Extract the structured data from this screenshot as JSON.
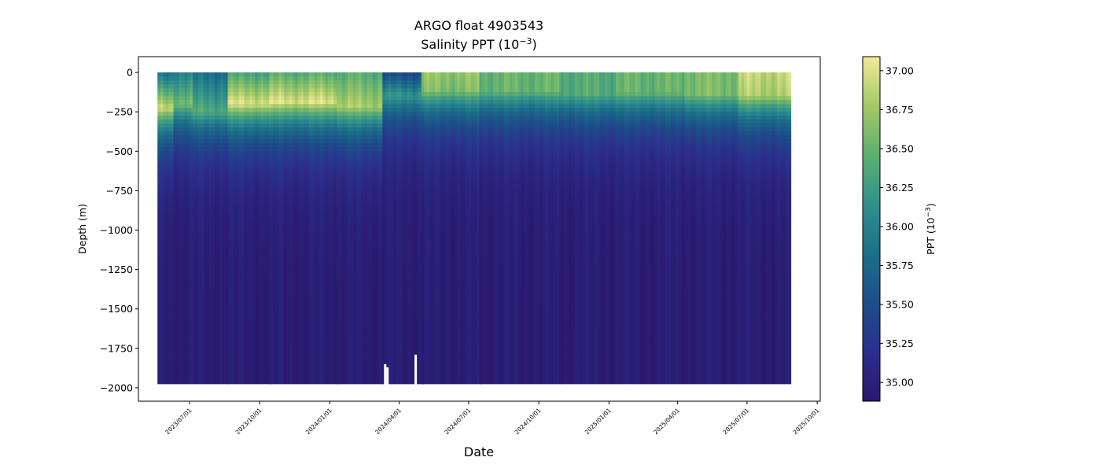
{
  "chart_data": {
    "type": "heatmap",
    "title": "ARGO float 4903543",
    "subtitle": "Salinity PPT (10",
    "subtitle_exp": "−3",
    "subtitle_end": ")",
    "xlabel": "Date",
    "ylabel": "Depth (m)",
    "colorbar_label": "PPT (10",
    "colorbar_label_exp": "−3",
    "colorbar_label_end": ")",
    "colormap": "haline",
    "colormap_stops": [
      "#2a186c",
      "#2b2f8c",
      "#1d4e89",
      "#1b6f8a",
      "#31908c",
      "#5daf71",
      "#a4c965",
      "#f2e997"
    ],
    "x_range": [
      "2023-04-25",
      "2025-10-05"
    ],
    "x_data_range": [
      "2023-05-20",
      "2025-08-25"
    ],
    "ylim": [
      -2085,
      100
    ],
    "clim": [
      34.88,
      37.09
    ],
    "xticks": [
      {
        "date": "2023-07-01",
        "label": "2023/07/01"
      },
      {
        "date": "2023-10-01",
        "label": "2023/10/01"
      },
      {
        "date": "2024-01-01",
        "label": "2024/01/01"
      },
      {
        "date": "2024-04-01",
        "label": "2024/04/01"
      },
      {
        "date": "2024-07-01",
        "label": "2024/07/01"
      },
      {
        "date": "2024-10-01",
        "label": "2024/10/01"
      },
      {
        "date": "2025-01-01",
        "label": "2025/01/01"
      },
      {
        "date": "2025-04-01",
        "label": "2025/04/01"
      },
      {
        "date": "2025-07-01",
        "label": "2025/07/01"
      },
      {
        "date": "2025-10-01",
        "label": "2025/10/01"
      }
    ],
    "yticks": [
      {
        "value": 0,
        "label": "0"
      },
      {
        "value": -250,
        "label": "−250"
      },
      {
        "value": -500,
        "label": "−500"
      },
      {
        "value": -750,
        "label": "−750"
      },
      {
        "value": -1000,
        "label": "−1000"
      },
      {
        "value": -1250,
        "label": "−1250"
      },
      {
        "value": -1500,
        "label": "−1500"
      },
      {
        "value": -1750,
        "label": "−1750"
      },
      {
        "value": -2000,
        "label": "−2000"
      }
    ],
    "colorbar_ticks": [
      {
        "value": 35.0,
        "label": "35.00"
      },
      {
        "value": 35.25,
        "label": "35.25"
      },
      {
        "value": 35.5,
        "label": "35.50"
      },
      {
        "value": 35.75,
        "label": "35.75"
      },
      {
        "value": 36.0,
        "label": "36.00"
      },
      {
        "value": 36.25,
        "label": "36.25"
      },
      {
        "value": 36.5,
        "label": "36.50"
      },
      {
        "value": 36.75,
        "label": "36.75"
      },
      {
        "value": 37.0,
        "label": "37.00"
      }
    ],
    "profile_max_depth": -1990,
    "data_gaps": [
      {
        "date_start": "2024-03-12",
        "date_end": "2024-03-14",
        "depth_top": -1850
      },
      {
        "date_start": "2024-03-15",
        "date_end": "2024-03-17",
        "depth_top": -1870
      },
      {
        "date_start": "2024-04-21",
        "date_end": "2024-04-23",
        "depth_top": -1790
      }
    ],
    "segments": [
      {
        "start": "2023-05-20",
        "end": "2023-06-10",
        "surface_salinity": 35.8,
        "max_salinity": 36.9,
        "max_depth": -230
      },
      {
        "start": "2023-06-10",
        "end": "2023-07-05",
        "surface_salinity": 36.0,
        "max_salinity": 36.6,
        "max_depth": -200
      },
      {
        "start": "2023-07-05",
        "end": "2023-08-20",
        "surface_salinity": 35.8,
        "max_salinity": 36.4,
        "max_depth": -250
      },
      {
        "start": "2023-08-20",
        "end": "2023-10-15",
        "surface_salinity": 36.3,
        "max_salinity": 37.0,
        "max_depth": -200
      },
      {
        "start": "2023-10-15",
        "end": "2024-01-10",
        "surface_salinity": 36.4,
        "max_salinity": 37.0,
        "max_depth": -190
      },
      {
        "start": "2024-01-10",
        "end": "2024-03-10",
        "surface_salinity": 36.4,
        "max_salinity": 36.8,
        "max_depth": -220
      },
      {
        "start": "2024-03-10",
        "end": "2024-04-30",
        "surface_salinity": 35.4,
        "max_salinity": 36.2,
        "max_depth": -150
      },
      {
        "start": "2024-04-30",
        "end": "2024-07-15",
        "surface_salinity": 36.7,
        "max_salinity": 36.6,
        "max_depth": -120
      },
      {
        "start": "2024-07-15",
        "end": "2024-10-30",
        "surface_salinity": 36.5,
        "max_salinity": 36.5,
        "max_depth": -120
      },
      {
        "start": "2024-10-30",
        "end": "2025-01-10",
        "surface_salinity": 36.4,
        "max_salinity": 36.4,
        "max_depth": -140
      },
      {
        "start": "2025-01-10",
        "end": "2025-04-10",
        "surface_salinity": 36.5,
        "max_salinity": 36.5,
        "max_depth": -130
      },
      {
        "start": "2025-04-10",
        "end": "2025-06-20",
        "surface_salinity": 36.6,
        "max_salinity": 36.6,
        "max_depth": -140
      },
      {
        "start": "2025-06-20",
        "end": "2025-08-25",
        "surface_salinity": 36.9,
        "max_salinity": 36.8,
        "max_depth": -150
      }
    ]
  }
}
